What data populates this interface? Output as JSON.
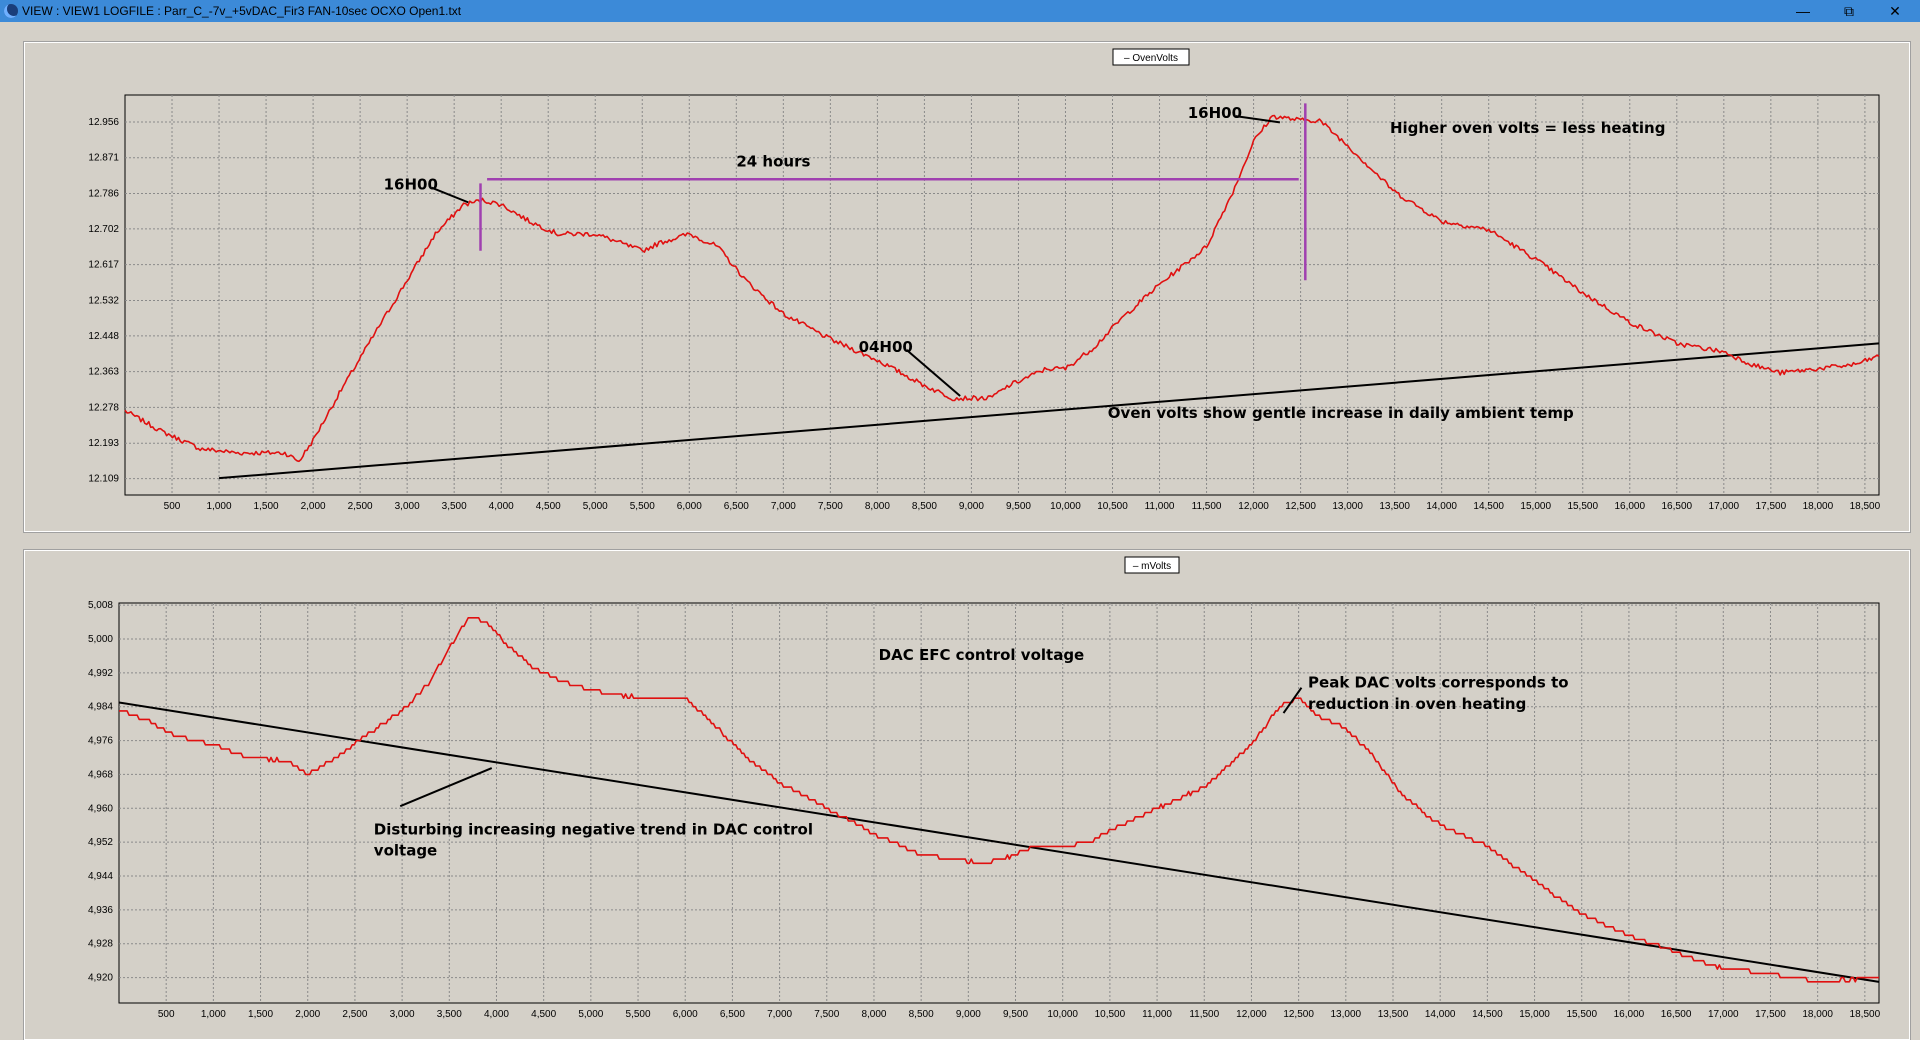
{
  "window": {
    "title": "VIEW :  VIEW1   LOGFILE : Parr_C_-7v_+5vDAC_Fir3 FAN-10sec OCXO Open1.txt",
    "buttons": {
      "minimize": "—",
      "maximize": "⧉",
      "close": "✕"
    }
  },
  "chart_data": [
    {
      "type": "line",
      "legend": "– OvenVolts",
      "series_color": "#e01010",
      "grid": true,
      "xlim": [
        0,
        18650
      ],
      "ylim": [
        12.07,
        13.02
      ],
      "x_ticks": [
        500,
        1000,
        1500,
        2000,
        2500,
        3000,
        3500,
        4000,
        4500,
        5000,
        5500,
        6000,
        6500,
        7000,
        7500,
        8000,
        8500,
        9000,
        9500,
        10000,
        10500,
        11000,
        11500,
        12000,
        12500,
        13000,
        13500,
        14000,
        14500,
        15000,
        15500,
        16000,
        16500,
        17000,
        17500,
        18000,
        18500
      ],
      "x_tick_labels": [
        "500",
        "1,000",
        "1,500",
        "2,000",
        "2,500",
        "3,000",
        "3,500",
        "4,000",
        "4,500",
        "5,000",
        "5,500",
        "6,000",
        "6,500",
        "7,000",
        "7,500",
        "8,000",
        "8,500",
        "9,000",
        "9,500",
        "10,000",
        "10,500",
        "11,000",
        "11,500",
        "12,000",
        "12,500",
        "13,000",
        "13,500",
        "14,000",
        "14,500",
        "15,000",
        "15,500",
        "16,000",
        "16,500",
        "17,000",
        "17,500",
        "18,000",
        "18,500"
      ],
      "y_ticks": [
        12.109,
        12.193,
        12.278,
        12.363,
        12.448,
        12.532,
        12.617,
        12.702,
        12.786,
        12.871,
        12.956
      ],
      "y_tick_labels": [
        "12.109",
        "12.193",
        "12.278",
        "12.363",
        "12.448",
        "12.532",
        "12.617",
        "12.702",
        "12.786",
        "12.871",
        "12.956"
      ],
      "series": [
        {
          "x": [
            0,
            400,
            800,
            1200,
            1500,
            1700,
            1850,
            2000,
            2300,
            2700,
            3000,
            3300,
            3600,
            3800,
            4000,
            4300,
            4600,
            5000,
            5500,
            5700,
            6000,
            6300,
            6600,
            7000,
            7500,
            8000,
            8500,
            8800,
            9000,
            9200,
            9400,
            9600,
            9800,
            10000,
            10300,
            10600,
            11000,
            11500,
            11800,
            12000,
            12200,
            12500,
            12700,
            13000,
            13500,
            14000,
            14500,
            15000,
            15500,
            16000,
            16500,
            17000,
            17300,
            17600,
            18000,
            18400,
            18650
          ],
          "y": [
            12.27,
            12.22,
            12.18,
            12.17,
            12.17,
            12.17,
            12.15,
            12.2,
            12.32,
            12.47,
            12.58,
            12.69,
            12.76,
            12.77,
            12.76,
            12.72,
            12.69,
            12.69,
            12.65,
            12.67,
            12.69,
            12.66,
            12.58,
            12.5,
            12.44,
            12.39,
            12.33,
            12.3,
            12.3,
            12.3,
            12.33,
            12.35,
            12.37,
            12.37,
            12.42,
            12.49,
            12.57,
            12.66,
            12.8,
            12.91,
            12.97,
            12.96,
            12.96,
            12.9,
            12.79,
            12.72,
            12.7,
            12.63,
            12.55,
            12.48,
            12.43,
            12.41,
            12.38,
            12.36,
            12.37,
            12.38,
            12.4
          ]
        }
      ],
      "trend_line": {
        "x": [
          1000,
          18650
        ],
        "y": [
          12.11,
          12.43
        ]
      },
      "markers": [
        {
          "kind": "vline",
          "x": 3780,
          "y1": 12.65,
          "y2": 12.81
        },
        {
          "kind": "vline",
          "x": 12550,
          "y1": 12.58,
          "y2": 13.0
        },
        {
          "kind": "hline",
          "y": 12.82,
          "x1": 3850,
          "x2": 12480
        }
      ],
      "annotations": [
        {
          "text": "16H00",
          "x": 2750,
          "y": 12.795,
          "pointer": [
            3650,
            12.765
          ]
        },
        {
          "text": "24 hours",
          "x": 6500,
          "y": 12.85
        },
        {
          "text": "16H00",
          "x": 11300,
          "y": 12.965,
          "pointer": [
            12280,
            12.955
          ]
        },
        {
          "text": "Higher oven volts = less heating",
          "x": 13450,
          "y": 12.93
        },
        {
          "text": "04H00",
          "x": 7800,
          "y": 12.41,
          "pointer": [
            8880,
            12.305
          ]
        },
        {
          "text": "Oven volts show gentle increase in daily ambient temp",
          "x": 10450,
          "y": 12.253
        }
      ]
    },
    {
      "type": "line",
      "legend": "– mVolts",
      "series_color": "#e01010",
      "grid": true,
      "xlim": [
        0,
        18650
      ],
      "ylim": [
        4.914,
        5.0085
      ],
      "x_ticks": [
        500,
        1000,
        1500,
        2000,
        2500,
        3000,
        3500,
        4000,
        4500,
        5000,
        5500,
        6000,
        6500,
        7000,
        7500,
        8000,
        8500,
        9000,
        9500,
        10000,
        10500,
        11000,
        11500,
        12000,
        12500,
        13000,
        13500,
        14000,
        14500,
        15000,
        15500,
        16000,
        16500,
        17000,
        17500,
        18000,
        18500
      ],
      "x_tick_labels": [
        "500",
        "1,000",
        "1,500",
        "2,000",
        "2,500",
        "3,000",
        "3,500",
        "4,000",
        "4,500",
        "5,000",
        "5,500",
        "6,000",
        "6,500",
        "7,000",
        "7,500",
        "8,000",
        "8,500",
        "9,000",
        "9,500",
        "10,000",
        "10,500",
        "11,000",
        "11,500",
        "12,000",
        "12,500",
        "13,000",
        "13,500",
        "14,000",
        "14,500",
        "15,000",
        "15,500",
        "16,000",
        "16,500",
        "17,000",
        "17,500",
        "18,000",
        "18,500"
      ],
      "y_ticks": [
        4.92,
        4.928,
        4.936,
        4.944,
        4.952,
        4.96,
        4.968,
        4.976,
        4.984,
        4.992,
        5.0,
        5.008
      ],
      "y_tick_labels": [
        "4,920",
        "4,928",
        "4,936",
        "4,944",
        "4,952",
        "4,960",
        "4,968",
        "4,976",
        "4,984",
        "4,992",
        "5,000",
        "5,008"
      ],
      "series": [
        {
          "x": [
            0,
            300,
            600,
            1000,
            1400,
            1800,
            2000,
            2300,
            2600,
            3000,
            3300,
            3500,
            3700,
            3900,
            4100,
            4400,
            4800,
            5200,
            5600,
            6000,
            6300,
            6600,
            7000,
            7500,
            8000,
            8500,
            8800,
            9200,
            9500,
            9700,
            10000,
            10300,
            10600,
            11000,
            11500,
            12000,
            12300,
            12500,
            12700,
            13000,
            13300,
            13600,
            14000,
            14500,
            15000,
            15500,
            16000,
            16500,
            17000,
            17500,
            18000,
            18650
          ],
          "y": [
            4.983,
            4.981,
            4.977,
            4.975,
            4.972,
            4.971,
            4.968,
            4.972,
            4.977,
            4.983,
            4.99,
            4.998,
            5.005,
            5.004,
            4.999,
            4.993,
            4.989,
            4.987,
            4.986,
            4.986,
            4.98,
            4.973,
            4.966,
            4.96,
            4.954,
            4.949,
            4.948,
            4.947,
            4.949,
            4.951,
            4.951,
            4.952,
            4.956,
            4.96,
            4.965,
            4.975,
            4.984,
            4.986,
            4.982,
            4.979,
            4.972,
            4.963,
            4.956,
            4.951,
            4.943,
            4.935,
            4.93,
            4.926,
            4.922,
            4.921,
            4.919,
            4.92
          ]
        }
      ],
      "trend_line": {
        "x": [
          0,
          18650
        ],
        "y": [
          4.985,
          4.919
        ]
      },
      "annotations": [
        {
          "text": "DAC EFC control voltage",
          "x": 8050,
          "y": 4.995
        },
        {
          "text": "Peak DAC volts corresponds to",
          "x": 12600,
          "y": 4.9885
        },
        {
          "text": "reduction in oven heating",
          "x": 12600,
          "y": 4.9835,
          "pointer_from": [
            12530,
            4.9885
          ],
          "pointer": [
            12340,
            4.9825
          ]
        },
        {
          "text": "Disturbing increasing negative trend in DAC control",
          "x": 2700,
          "y": 4.9538,
          "pointer_from": [
            2980,
            4.9605
          ],
          "pointer": [
            3950,
            4.9695
          ]
        },
        {
          "text": "voltage",
          "x": 2700,
          "y": 4.9488
        }
      ]
    }
  ]
}
